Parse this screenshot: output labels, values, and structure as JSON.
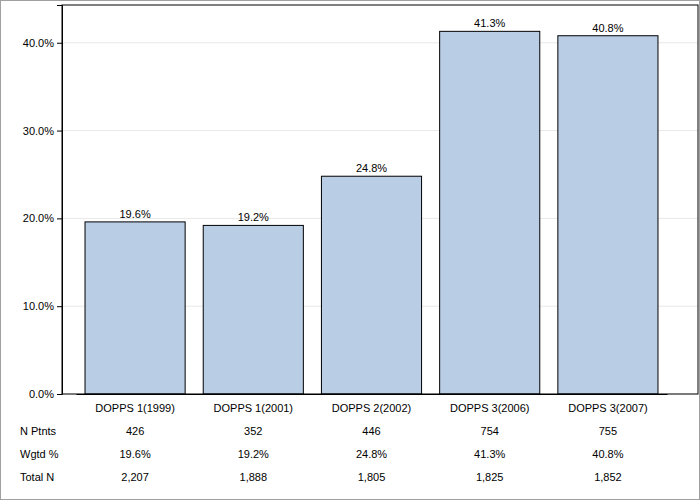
{
  "chart_data": {
    "type": "bar",
    "categories": [
      "DOPPS 1(1999)",
      "DOPPS 1(2001)",
      "DOPPS 2(2002)",
      "DOPPS 3(2006)",
      "DOPPS 3(2007)"
    ],
    "values": [
      19.6,
      19.2,
      24.8,
      41.3,
      40.8
    ],
    "value_labels": [
      "19.6%",
      "19.2%",
      "24.8%",
      "41.3%",
      "40.8%"
    ],
    "color": "#b9cde5",
    "ylim": [
      0,
      44.3
    ],
    "yticks": [
      {
        "value": 0,
        "label": "0.0%"
      },
      {
        "value": 10,
        "label": "10.0%"
      },
      {
        "value": 20,
        "label": "20.0%"
      },
      {
        "value": 30,
        "label": "30.0%"
      },
      {
        "value": 40,
        "label": "40.0%"
      }
    ],
    "grid": true,
    "data_labels": true,
    "table": [
      {
        "label": "N Ptnts",
        "values": [
          426,
          352,
          446,
          754,
          755
        ]
      },
      {
        "label": "Wgtd %",
        "values": [
          19.6,
          19.2,
          24.8,
          41.3,
          40.8
        ],
        "value_labels": [
          "19.6%",
          "19.2%",
          "24.8%",
          "41.3%",
          "40.8%"
        ]
      },
      {
        "label": "Total N",
        "values": [
          2207,
          1888,
          1805,
          1825,
          1852
        ],
        "value_labels": [
          "2,207",
          "1,888",
          "1,805",
          "1,825",
          "1,852"
        ]
      }
    ]
  }
}
